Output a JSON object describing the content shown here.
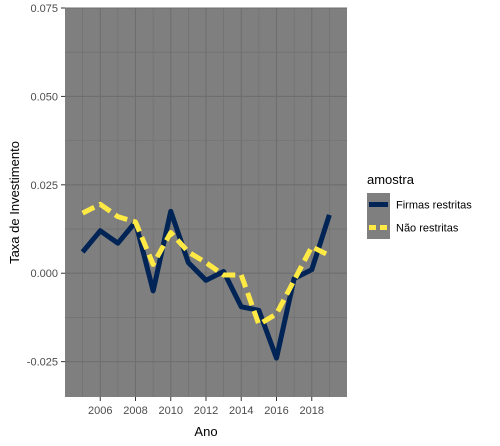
{
  "chart_data": {
    "type": "line",
    "title": "",
    "xlabel": "Ano",
    "ylabel": "Taxa de Investimento",
    "x": [
      2005,
      2006,
      2007,
      2008,
      2009,
      2010,
      2011,
      2012,
      2013,
      2014,
      2015,
      2016,
      2017,
      2018,
      2019
    ],
    "xlim": [
      2004,
      2020
    ],
    "ylim": [
      -0.035,
      0.075
    ],
    "x_ticks": [
      2006,
      2008,
      2010,
      2012,
      2014,
      2016,
      2018
    ],
    "y_ticks": [
      -0.025,
      0.0,
      0.025,
      0.05,
      0.075
    ],
    "y_tick_labels": [
      "-0.025",
      "0.000",
      "0.025",
      "0.050",
      "0.075"
    ],
    "grid": true,
    "legend": {
      "title": "amostra",
      "placement": "right"
    },
    "series": [
      {
        "name": "Firmas restritas",
        "color": "#002456",
        "dash": "solid",
        "values": [
          0.006,
          0.012,
          0.0085,
          0.0145,
          -0.005,
          0.0175,
          0.003,
          -0.002,
          0.0005,
          -0.0095,
          -0.0105,
          -0.024,
          -0.0015,
          0.001,
          0.0165
        ]
      },
      {
        "name": "Não restritas",
        "color": "#FFE945",
        "dash": "dashed",
        "values": [
          0.017,
          0.0195,
          0.016,
          0.0145,
          0.0025,
          0.0115,
          0.006,
          0.003,
          -0.0005,
          -0.0005,
          -0.0145,
          -0.0115,
          -0.002,
          0.0075,
          0.005
        ]
      }
    ],
    "panel_background": "#7F7F7F",
    "grid_color": "#6e6e6e"
  }
}
